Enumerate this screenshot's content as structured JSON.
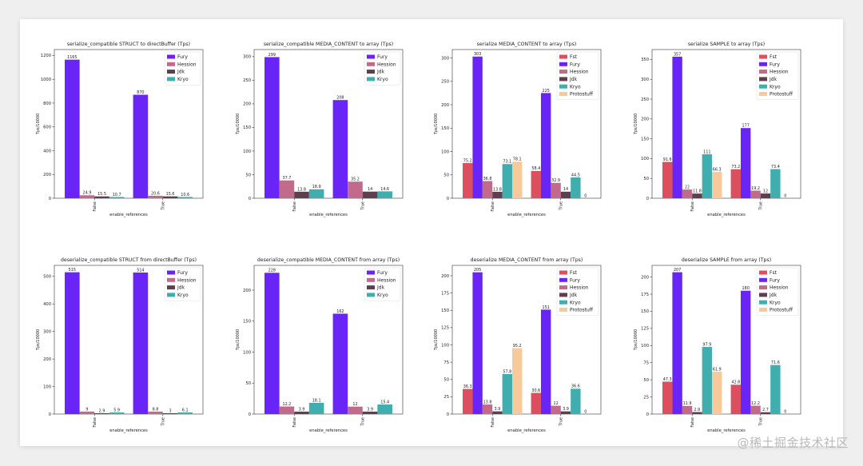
{
  "watermark": "@稀土掘金技术社区",
  "colors": {
    "Fst": "#dc4f5e",
    "Fury": "#6925f5",
    "Hession": "#c16a8c",
    "Jdk": "#5d3f4e",
    "Kryo": "#40aeae",
    "Protostuff": "#f8c99b"
  },
  "chart_data": [
    {
      "type": "bar",
      "title": "serialize_compatible STRUCT to directBuffer (Tps)",
      "xlabel": "enable_references",
      "ylabel": "Tps/10000",
      "categories": [
        "False",
        "True"
      ],
      "ylim": [
        0,
        1250
      ],
      "yticks": [
        0,
        200,
        400,
        600,
        800,
        1000,
        1200
      ],
      "series": [
        {
          "name": "Fury",
          "values": [
            1165,
            870
          ],
          "labels": [
            "1165",
            "870"
          ]
        },
        {
          "name": "Hession",
          "values": [
            24.9,
            20.6
          ],
          "labels": [
            "24.9",
            "20.6"
          ]
        },
        {
          "name": "Jdk",
          "values": [
            15.5,
            15.6
          ],
          "labels": [
            "15.5",
            "15.6"
          ]
        },
        {
          "name": "Kryo",
          "values": [
            10.7,
            10.6
          ],
          "labels": [
            "10.7",
            "10.6"
          ]
        }
      ]
    },
    {
      "type": "bar",
      "title": "serialize_compatible MEDIA_CONTENT to array (Tps)",
      "xlabel": "enable_references",
      "ylabel": "Tps/10000",
      "categories": [
        "False",
        "True"
      ],
      "ylim": [
        0,
        315
      ],
      "yticks": [
        0,
        50,
        100,
        150,
        200,
        250,
        300
      ],
      "series": [
        {
          "name": "Fury",
          "values": [
            299,
            208
          ],
          "labels": [
            "299",
            "208"
          ]
        },
        {
          "name": "Hession",
          "values": [
            37.7,
            35.2
          ],
          "labels": [
            "37.7",
            "35.2"
          ]
        },
        {
          "name": "Jdk",
          "values": [
            13.8,
            14
          ],
          "labels": [
            "13.8",
            "14"
          ]
        },
        {
          "name": "Kryo",
          "values": [
            18.9,
            14.6
          ],
          "labels": [
            "18.9",
            "14.6"
          ]
        }
      ]
    },
    {
      "type": "bar",
      "title": "serialize MEDIA_CONTENT to array (Tps)",
      "xlabel": "enable_references",
      "ylabel": "Tps/10000",
      "categories": [
        "False",
        "True"
      ],
      "ylim": [
        0,
        318
      ],
      "yticks": [
        0,
        50,
        100,
        150,
        200,
        250,
        300
      ],
      "series": [
        {
          "name": "Fst",
          "values": [
            75.2,
            58.4
          ],
          "labels": [
            "75.2",
            "58.4"
          ]
        },
        {
          "name": "Fury",
          "values": [
            303,
            225
          ],
          "labels": [
            "303",
            "225"
          ]
        },
        {
          "name": "Hession",
          "values": [
            36.8,
            32.9
          ],
          "labels": [
            "36.8",
            "32.9"
          ]
        },
        {
          "name": "Jdk",
          "values": [
            13.8,
            14
          ],
          "labels": [
            "13.8",
            "14"
          ]
        },
        {
          "name": "Kryo",
          "values": [
            73.1,
            44.5
          ],
          "labels": [
            "73.1",
            "44.5"
          ]
        },
        {
          "name": "Protostuff",
          "values": [
            78.1,
            0
          ],
          "labels": [
            "78.1",
            "0"
          ]
        }
      ]
    },
    {
      "type": "bar",
      "title": "serialize SAMPLE to array (Tps)",
      "xlabel": "enable_references",
      "ylabel": "Tps/10000",
      "categories": [
        "False",
        "True"
      ],
      "ylim": [
        0,
        375
      ],
      "yticks": [
        0,
        50,
        100,
        150,
        200,
        250,
        300,
        350
      ],
      "series": [
        {
          "name": "Fst",
          "values": [
            91.6,
            73.2
          ],
          "labels": [
            "91.6",
            "73.2"
          ]
        },
        {
          "name": "Fury",
          "values": [
            357,
            177
          ],
          "labels": [
            "357",
            "177"
          ]
        },
        {
          "name": "Hession",
          "values": [
            22,
            19.2
          ],
          "labels": [
            "22",
            "19.2"
          ]
        },
        {
          "name": "Jdk",
          "values": [
            11.8,
            12
          ],
          "labels": [
            "11.8",
            "12"
          ]
        },
        {
          "name": "Kryo",
          "values": [
            111,
            73.4
          ],
          "labels": [
            "111",
            "73.4"
          ]
        },
        {
          "name": "Protostuff",
          "values": [
            66.3,
            0
          ],
          "labels": [
            "66.3",
            "0"
          ]
        }
      ]
    },
    {
      "type": "bar",
      "title": "deserialize_compatible STRUCT from directBuffer (Tps)",
      "xlabel": "enable_references",
      "ylabel": "Tps/10000",
      "categories": [
        "False",
        "True"
      ],
      "ylim": [
        0,
        540
      ],
      "yticks": [
        0,
        100,
        200,
        300,
        400,
        500
      ],
      "series": [
        {
          "name": "Fury",
          "values": [
            515,
            514
          ],
          "labels": [
            "515",
            "514"
          ]
        },
        {
          "name": "Hession",
          "values": [
            9,
            8.8
          ],
          "labels": [
            "9",
            "8.8"
          ]
        },
        {
          "name": "Jdk",
          "values": [
            2.9,
            3
          ],
          "labels": [
            "2.9",
            "3"
          ]
        },
        {
          "name": "Kryo",
          "values": [
            5.9,
            6.1
          ],
          "labels": [
            "5.9",
            "6.1"
          ]
        }
      ]
    },
    {
      "type": "bar",
      "title": "deserialize_compatible MEDIA_CONTENT from array (Tps)",
      "xlabel": "enable_references",
      "ylabel": "Tps/10000",
      "categories": [
        "False",
        "True"
      ],
      "ylim": [
        0,
        240
      ],
      "yticks": [
        0,
        50,
        100,
        150,
        200
      ],
      "series": [
        {
          "name": "Fury",
          "values": [
            228,
            162
          ],
          "labels": [
            "228",
            "162"
          ]
        },
        {
          "name": "Hession",
          "values": [
            12.2,
            12
          ],
          "labels": [
            "12.2",
            "12"
          ]
        },
        {
          "name": "Jdk",
          "values": [
            3.9,
            3.9
          ],
          "labels": [
            "3.9",
            "3.9"
          ]
        },
        {
          "name": "Kryo",
          "values": [
            18.1,
            15.4
          ],
          "labels": [
            "18.1",
            "15.4"
          ]
        }
      ]
    },
    {
      "type": "bar",
      "title": "deserialize MEDIA_CONTENT from array (Tps)",
      "xlabel": "enable_references",
      "ylabel": "Tps/10000",
      "categories": [
        "False",
        "True"
      ],
      "ylim": [
        0,
        215
      ],
      "yticks": [
        0,
        25,
        50,
        75,
        100,
        125,
        150,
        175,
        200
      ],
      "series": [
        {
          "name": "Fst",
          "values": [
            36.3,
            30.6
          ],
          "labels": [
            "36.3",
            "30.6"
          ]
        },
        {
          "name": "Fury",
          "values": [
            205,
            151
          ],
          "labels": [
            "205",
            "151"
          ]
        },
        {
          "name": "Hession",
          "values": [
            13.8,
            12
          ],
          "labels": [
            "13.8",
            "12"
          ]
        },
        {
          "name": "Jdk",
          "values": [
            3.9,
            3.9
          ],
          "labels": [
            "3.9",
            "3.9"
          ]
        },
        {
          "name": "Kryo",
          "values": [
            57.8,
            36.6
          ],
          "labels": [
            "57.8",
            "36.6"
          ]
        },
        {
          "name": "Protostuff",
          "values": [
            95.2,
            0
          ],
          "labels": [
            "95.2",
            "0"
          ]
        }
      ]
    },
    {
      "type": "bar",
      "title": "deserialize SAMPLE from array (Tps)",
      "xlabel": "enable_references",
      "ylabel": "Tps/10000",
      "categories": [
        "False",
        "True"
      ],
      "ylim": [
        0,
        217
      ],
      "yticks": [
        0,
        25,
        50,
        75,
        100,
        125,
        150,
        175,
        200
      ],
      "series": [
        {
          "name": "Fst",
          "values": [
            47.3,
            42.8
          ],
          "labels": [
            "47.3",
            "42.8"
          ]
        },
        {
          "name": "Fury",
          "values": [
            207,
            180
          ],
          "labels": [
            "207",
            "180"
          ]
        },
        {
          "name": "Hession",
          "values": [
            11.9,
            12.2
          ],
          "labels": [
            "11.9",
            "12.2"
          ]
        },
        {
          "name": "Jdk",
          "values": [
            2.9,
            2.7
          ],
          "labels": [
            "2.9",
            "2.7"
          ]
        },
        {
          "name": "Kryo",
          "values": [
            97.9,
            71.6
          ],
          "labels": [
            "97.9",
            "71.6"
          ]
        },
        {
          "name": "Protostuff",
          "values": [
            61.9,
            0
          ],
          "labels": [
            "61.9",
            "0"
          ]
        }
      ]
    }
  ]
}
